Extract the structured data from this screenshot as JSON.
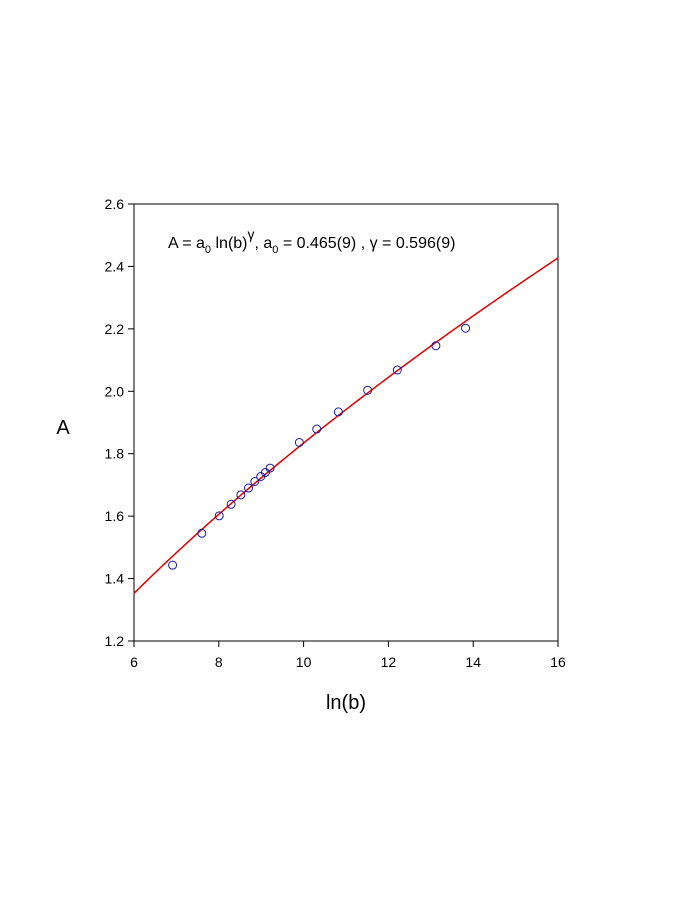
{
  "chart_data": {
    "type": "scatter",
    "xlabel": "ln(b)",
    "ylabel": "A",
    "xlim": [
      6,
      16
    ],
    "ylim": [
      1.2,
      2.6
    ],
    "xticks": [
      6,
      8,
      10,
      12,
      14,
      16
    ],
    "yticks": [
      1.2,
      1.4,
      1.6,
      1.8,
      2.0,
      2.2,
      2.4,
      2.6
    ],
    "xtick_labels": [
      "6",
      "8",
      "10",
      "12",
      "14",
      "16"
    ],
    "ytick_labels": [
      "1.2",
      "1.4",
      "1.6",
      "1.8",
      "2.0",
      "2.2",
      "2.4",
      "2.6"
    ],
    "grid": false,
    "annotation": {
      "lhs": "A = a",
      "sub0": "0",
      "mid": " ln(b)",
      "sup": "γ",
      "a0_label": ",  a",
      "a0_sub": "0",
      "a0_value": " = 0.465(9) ,  γ = 0.596(9)"
    },
    "series": [
      {
        "kind": "points",
        "marker": "open-circle",
        "color": "#1a1aa0",
        "x": [
          6.91,
          7.6,
          8.01,
          8.29,
          8.52,
          8.7,
          8.85,
          8.99,
          9.1,
          9.21,
          9.9,
          10.31,
          10.82,
          11.51,
          12.21,
          13.12,
          13.82
        ],
        "y": [
          1.443,
          1.545,
          1.601,
          1.638,
          1.668,
          1.69,
          1.711,
          1.727,
          1.74,
          1.754,
          1.836,
          1.879,
          1.934,
          2.003,
          2.068,
          2.146,
          2.202
        ]
      },
      {
        "kind": "fit",
        "color": "#e00000",
        "a0": 0.465,
        "gamma": 0.596,
        "x_range": [
          6,
          16
        ]
      }
    ]
  }
}
